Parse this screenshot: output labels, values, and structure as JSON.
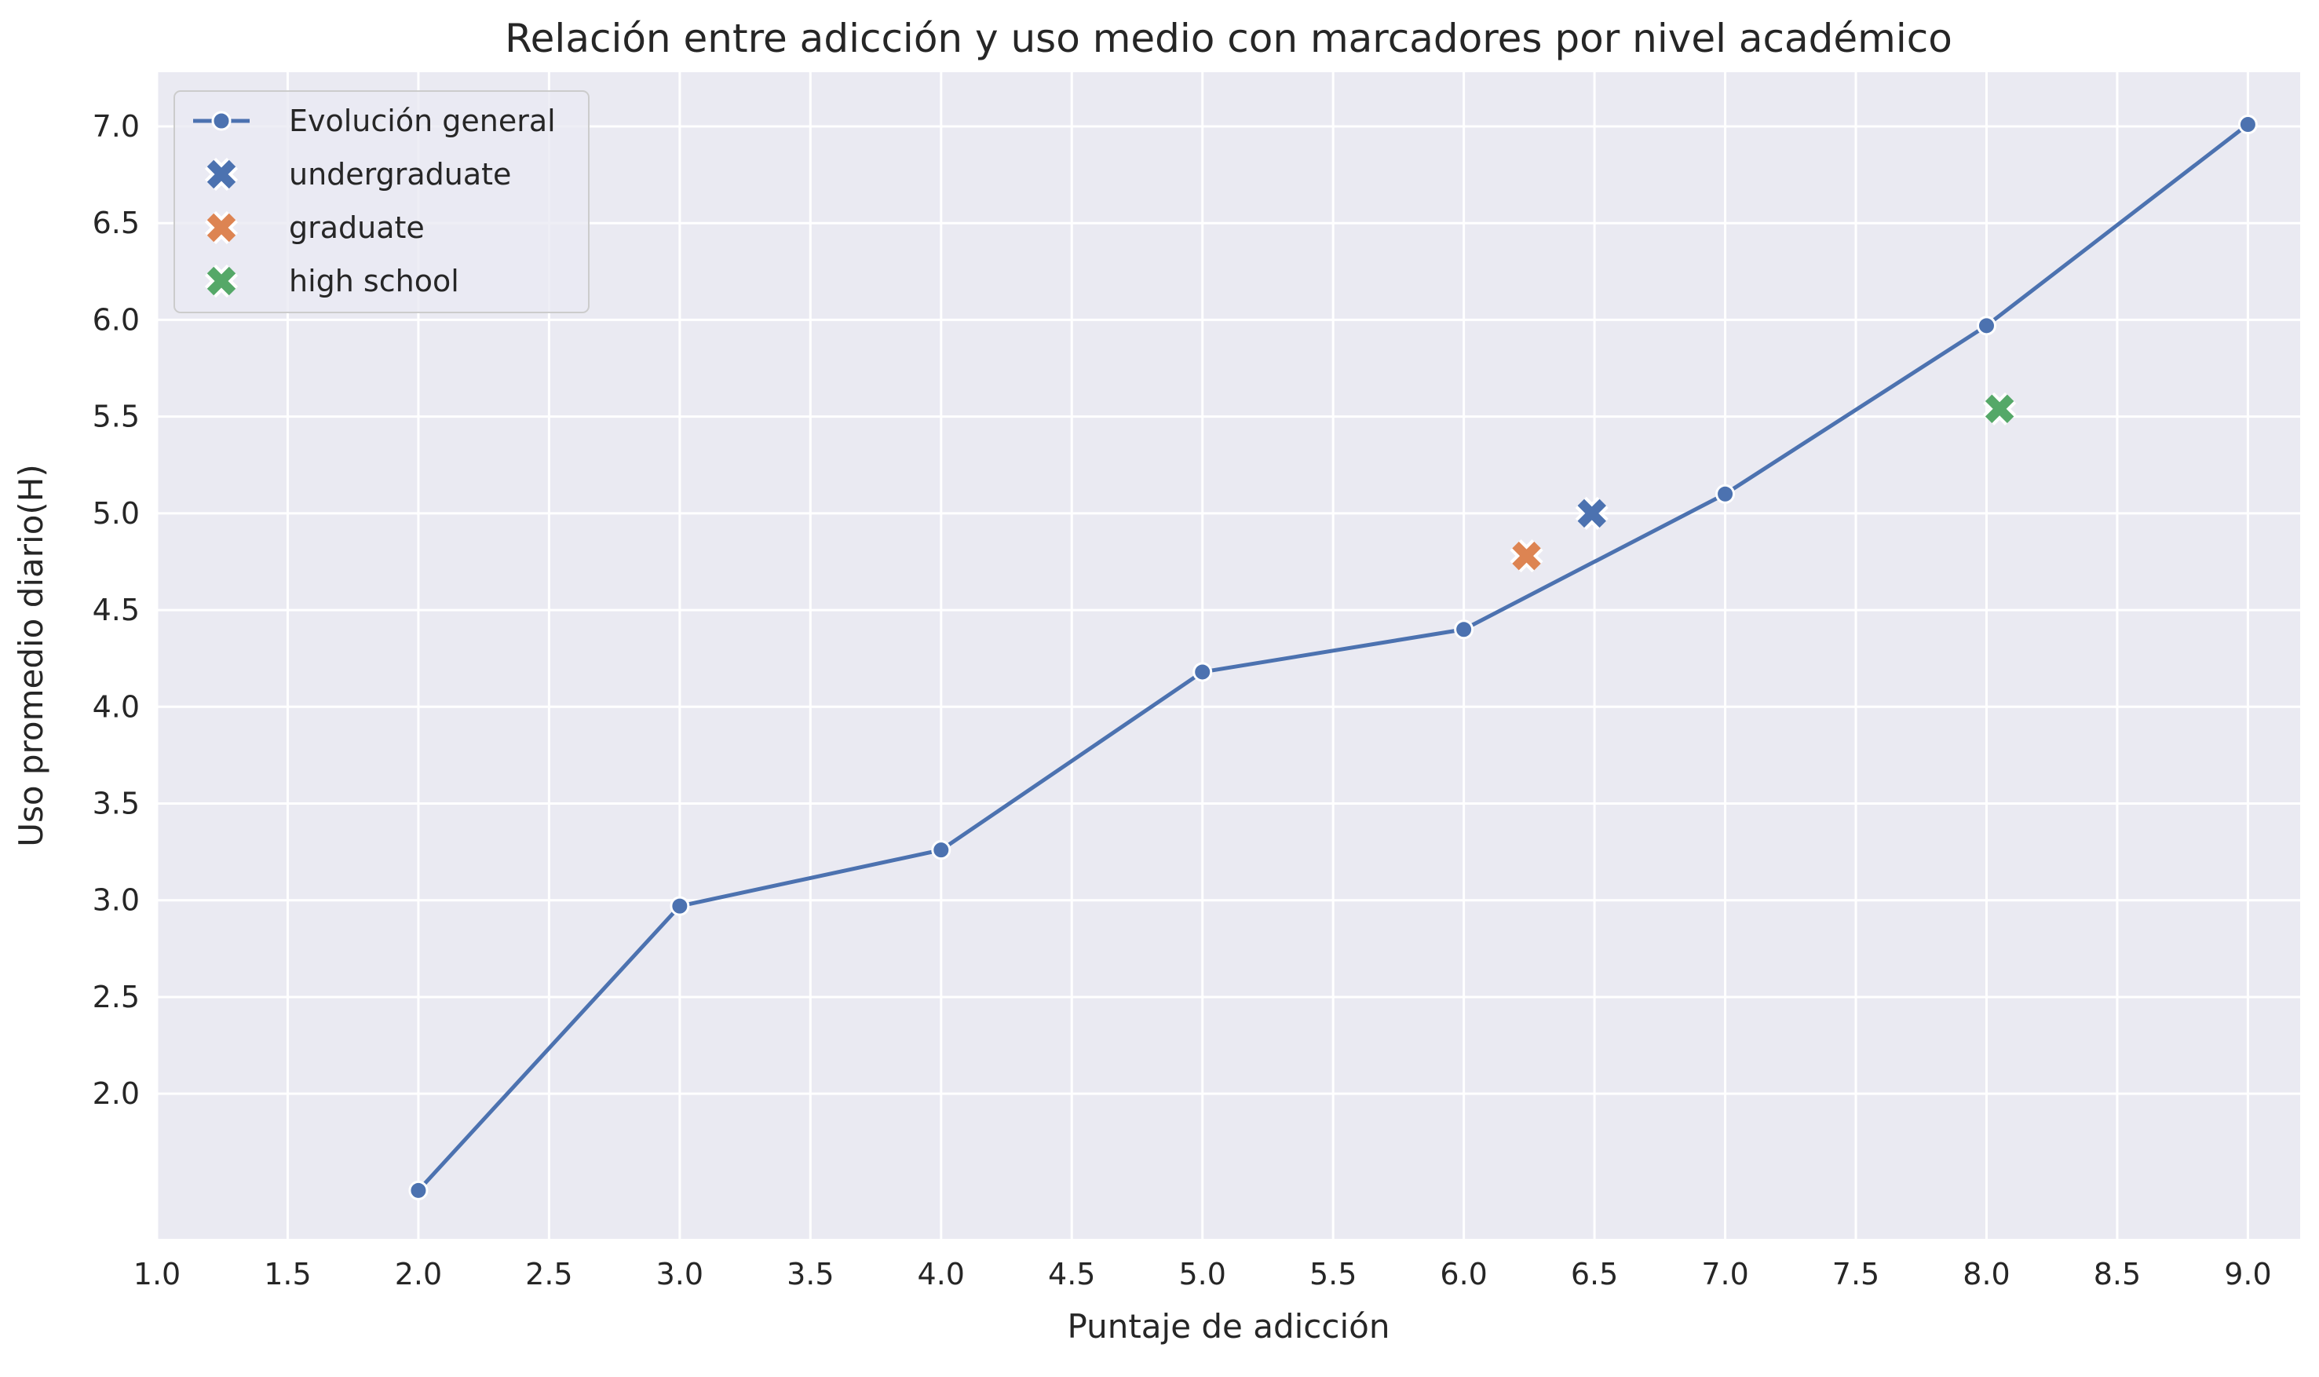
{
  "chart_data": {
    "type": "line",
    "title": "Relación entre adicción y uso medio con marcadores por nivel académico",
    "xlabel": "Puntaje de adicción",
    "ylabel": "Uso promedio diario(H)",
    "xlim": [
      1.0,
      9.2
    ],
    "ylim": [
      1.25,
      7.28
    ],
    "xticks": [
      "1.0",
      "1.5",
      "2.0",
      "2.5",
      "3.0",
      "3.5",
      "4.0",
      "4.5",
      "5.0",
      "5.5",
      "6.0",
      "6.5",
      "7.0",
      "7.5",
      "8.0",
      "8.5",
      "9.0"
    ],
    "yticks": [
      "2.0",
      "2.5",
      "3.0",
      "3.5",
      "4.0",
      "4.5",
      "5.0",
      "5.5",
      "6.0",
      "6.5",
      "7.0"
    ],
    "grid": true,
    "legend_position": "top-left",
    "series": [
      {
        "name": "Evolución general",
        "kind": "line",
        "color": "#4c72b0",
        "x": [
          2,
          3,
          4,
          5,
          6,
          7,
          8,
          9
        ],
        "y": [
          1.5,
          2.97,
          3.26,
          4.18,
          4.4,
          5.1,
          5.97,
          7.01
        ]
      },
      {
        "name": "undergraduate",
        "kind": "marker",
        "color": "#4c72b0",
        "x": [
          6.49
        ],
        "y": [
          5.0
        ]
      },
      {
        "name": "graduate",
        "kind": "marker",
        "color": "#dd8452",
        "x": [
          6.24
        ],
        "y": [
          4.78
        ]
      },
      {
        "name": "high school",
        "kind": "marker",
        "color": "#55a868",
        "x": [
          8.05
        ],
        "y": [
          5.54
        ]
      }
    ],
    "colors": {
      "background": "#eaeaf2",
      "grid": "#ffffff",
      "text": "#262626"
    }
  }
}
